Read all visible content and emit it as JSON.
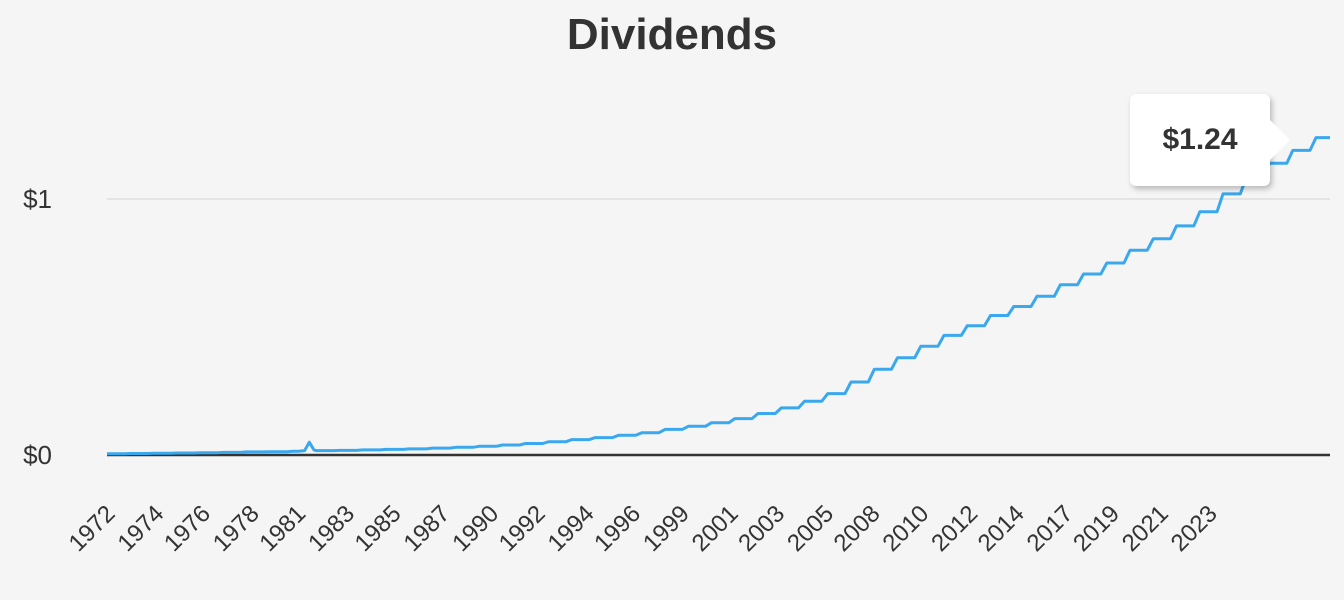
{
  "chart_data": {
    "type": "line",
    "title": "Dividends",
    "xlabel": "",
    "ylabel": "",
    "xlim": [
      1972,
      2024.6
    ],
    "ylim": [
      0,
      1.3
    ],
    "y_ticks": [
      {
        "value": 0,
        "label": "$0"
      },
      {
        "value": 1,
        "label": "$1"
      }
    ],
    "x_ticks": [
      "1972",
      "1974",
      "1976",
      "1978",
      "1981",
      "1983",
      "1985",
      "1987",
      "1990",
      "1992",
      "1994",
      "1996",
      "1999",
      "2001",
      "2003",
      "2005",
      "2008",
      "2010",
      "2012",
      "2014",
      "2017",
      "2019",
      "2021",
      "2023"
    ],
    "x_tick_positions": [
      1972.4,
      1974.5,
      1976.5,
      1978.6,
      1980.6,
      1982.7,
      1984.7,
      1986.8,
      1988.9,
      1990.9,
      1993.0,
      1995.0,
      1997.1,
      1999.2,
      2001.2,
      2003.3,
      2005.3,
      2007.4,
      2009.5,
      2011.5,
      2013.6,
      2015.6,
      2017.7,
      2019.8
    ],
    "grid": true,
    "legend": "none",
    "series": [
      {
        "color": "#3aa8ee",
        "points": [
          [
            1972.0,
            0.005
          ],
          [
            1973.0,
            0.006
          ],
          [
            1974.0,
            0.007
          ],
          [
            1975.0,
            0.008
          ],
          [
            1976.0,
            0.009
          ],
          [
            1977.0,
            0.01
          ],
          [
            1978.0,
            0.012
          ],
          [
            1979.0,
            0.013
          ],
          [
            1980.0,
            0.015
          ],
          [
            1980.5,
            0.017
          ],
          [
            1980.7,
            0.05
          ],
          [
            1980.9,
            0.02
          ],
          [
            1981.0,
            0.017
          ],
          [
            1982.0,
            0.018
          ],
          [
            1983.0,
            0.02
          ],
          [
            1984.0,
            0.022
          ],
          [
            1985.0,
            0.024
          ],
          [
            1986.0,
            0.027
          ],
          [
            1987.0,
            0.03
          ],
          [
            1988.0,
            0.034
          ],
          [
            1989.0,
            0.039
          ],
          [
            1990.0,
            0.045
          ],
          [
            1991.0,
            0.052
          ],
          [
            1992.0,
            0.06
          ],
          [
            1993.0,
            0.068
          ],
          [
            1994.0,
            0.077
          ],
          [
            1995.0,
            0.087
          ],
          [
            1996.0,
            0.1
          ],
          [
            1997.0,
            0.112
          ],
          [
            1998.0,
            0.126
          ],
          [
            1999.0,
            0.142
          ],
          [
            2000.0,
            0.162
          ],
          [
            2001.0,
            0.184
          ],
          [
            2002.0,
            0.21
          ],
          [
            2003.0,
            0.24
          ],
          [
            2004.0,
            0.285
          ],
          [
            2005.0,
            0.335
          ],
          [
            2006.0,
            0.38
          ],
          [
            2007.0,
            0.425
          ],
          [
            2008.0,
            0.467
          ],
          [
            2009.0,
            0.505
          ],
          [
            2010.0,
            0.545
          ],
          [
            2011.0,
            0.58
          ],
          [
            2012.0,
            0.62
          ],
          [
            2013.0,
            0.665
          ],
          [
            2014.0,
            0.707
          ],
          [
            2015.0,
            0.75
          ],
          [
            2016.0,
            0.8
          ],
          [
            2017.0,
            0.845
          ],
          [
            2018.0,
            0.895
          ],
          [
            2019.0,
            0.95
          ],
          [
            2020.0,
            1.02
          ],
          [
            2021.0,
            1.085
          ],
          [
            2022.0,
            1.14
          ],
          [
            2023.0,
            1.19
          ],
          [
            2024.0,
            1.24
          ],
          [
            2024.6,
            1.24
          ]
        ]
      }
    ],
    "tooltip": {
      "label": "$1.24"
    }
  }
}
